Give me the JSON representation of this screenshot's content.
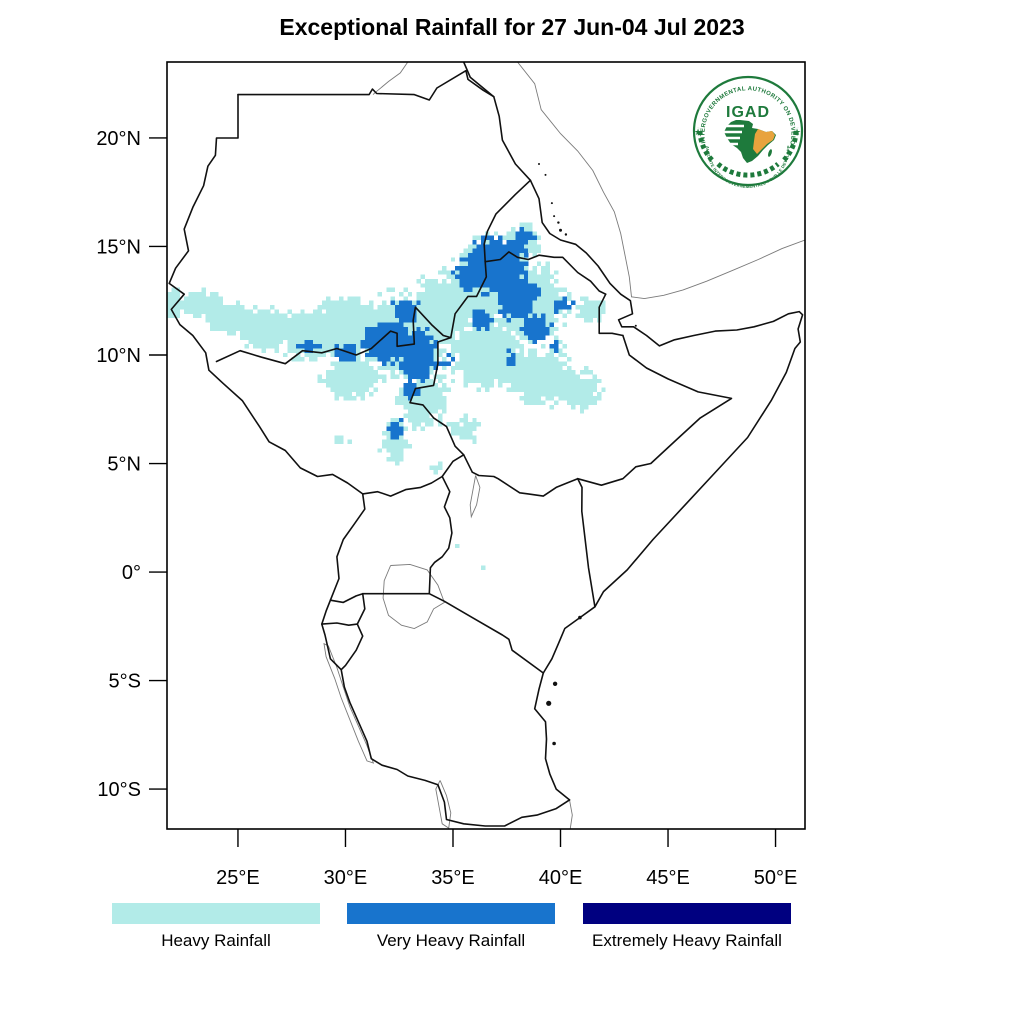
{
  "title": "Exceptional Rainfall for 27 Jun-04 Jul 2023",
  "map": {
    "extent": {
      "lon_min": 21.7,
      "lon_max": 51.37,
      "lat_min": -11.84,
      "lat_max": 23.5
    },
    "x_axis": {
      "ticks": [
        {
          "label": "25°E",
          "lon": 25
        },
        {
          "label": "30°E",
          "lon": 30
        },
        {
          "label": "35°E",
          "lon": 35
        },
        {
          "label": "40°E",
          "lon": 40
        },
        {
          "label": "45°E",
          "lon": 45
        },
        {
          "label": "50°E",
          "lon": 50
        }
      ]
    },
    "y_axis": {
      "ticks": [
        {
          "label": "20°N",
          "lat": 20
        },
        {
          "label": "15°N",
          "lat": 15
        },
        {
          "label": "10°N",
          "lat": 10
        },
        {
          "label": "5°N",
          "lat": 5
        },
        {
          "label": "0°",
          "lat": 0
        },
        {
          "label": "5°S",
          "lat": -5
        },
        {
          "label": "10°S",
          "lat": -10
        }
      ]
    }
  },
  "legend": {
    "items": [
      {
        "label": "Heavy Rainfall",
        "color": "#B2EBE8"
      },
      {
        "label": "Very Heavy Rainfall",
        "color": "#1874CD"
      },
      {
        "label": "Extremely Heavy Rainfall",
        "color": "#000080"
      }
    ]
  },
  "logo": {
    "acronym": "IGAD",
    "top_text": "INTERGOVERNMENTAL AUTHORITY ON DEVELOPMENT",
    "bottom_text": "AUTORITE INTERGOUVERNEMENTALE POUR LE DEVELOPPEMENT",
    "star": "★",
    "green": "#1E7A3C",
    "yellow": "#E8A33D"
  },
  "rainfall": {
    "grid_degrees": 0.2,
    "levels": [
      {
        "name": "heavy",
        "color": "#B2EBE8",
        "blobs": [
          [
            21.9,
            12.4,
            0.9,
            1.0,
            0.75
          ],
          [
            23.2,
            12.4,
            1.2,
            0.9,
            0.8
          ],
          [
            24.6,
            11.7,
            1.6,
            1.0,
            0.8
          ],
          [
            26.4,
            11.2,
            1.9,
            1.2,
            0.85
          ],
          [
            28.3,
            10.9,
            1.9,
            1.4,
            0.9
          ],
          [
            30.1,
            11.4,
            2.1,
            1.6,
            0.95
          ],
          [
            32.6,
            10.9,
            2.4,
            2.2,
            1.0
          ],
          [
            34.6,
            12.1,
            2.0,
            1.9,
            0.95
          ],
          [
            36.6,
            13.4,
            2.2,
            2.2,
            1.0
          ],
          [
            38.6,
            12.4,
            2.0,
            2.2,
            0.95
          ],
          [
            36.6,
            10.0,
            2.2,
            1.8,
            0.95
          ],
          [
            38.9,
            9.0,
            2.0,
            1.6,
            0.9
          ],
          [
            40.9,
            8.3,
            1.4,
            1.3,
            0.8
          ],
          [
            33.6,
            8.0,
            1.5,
            1.7,
            0.85
          ],
          [
            32.3,
            5.9,
            0.9,
            1.1,
            0.75
          ],
          [
            30.3,
            8.9,
            1.7,
            1.3,
            0.85
          ],
          [
            41.4,
            12.1,
            0.9,
            0.9,
            0.7
          ],
          [
            35.6,
            6.6,
            1.1,
            0.9,
            0.7
          ],
          [
            34.3,
            4.8,
            0.5,
            0.45,
            0.6
          ],
          [
            29.8,
            6.1,
            0.55,
            0.55,
            0.65
          ],
          [
            35.3,
            1.2,
            0.28,
            0.28,
            0.6
          ],
          [
            36.3,
            0.2,
            0.18,
            0.18,
            0.58
          ],
          [
            38.3,
            15.3,
            1.0,
            1.1,
            0.8
          ]
        ]
      },
      {
        "name": "very_heavy",
        "color": "#1874CD",
        "blobs": [
          [
            31.9,
            10.6,
            1.5,
            1.2,
            1.05
          ],
          [
            33.4,
            10.0,
            1.1,
            1.6,
            1.0
          ],
          [
            32.8,
            12.0,
            0.9,
            0.8,
            0.9
          ],
          [
            30.1,
            10.2,
            1.0,
            0.7,
            0.85
          ],
          [
            28.3,
            10.4,
            0.8,
            0.5,
            0.75
          ],
          [
            36.9,
            14.1,
            1.9,
            1.6,
            1.05
          ],
          [
            38.0,
            12.7,
            1.3,
            1.5,
            0.95
          ],
          [
            38.9,
            11.2,
            1.0,
            1.1,
            0.85
          ],
          [
            36.3,
            11.6,
            0.8,
            0.8,
            0.75
          ],
          [
            40.1,
            12.3,
            0.8,
            0.8,
            0.7
          ],
          [
            32.4,
            6.6,
            0.6,
            1.0,
            0.8
          ],
          [
            33.1,
            8.4,
            0.6,
            0.8,
            0.7
          ],
          [
            37.6,
            9.9,
            0.9,
            0.7,
            0.65
          ],
          [
            39.8,
            10.4,
            0.7,
            0.7,
            0.6
          ],
          [
            34.8,
            9.7,
            0.7,
            0.6,
            0.65
          ],
          [
            35.7,
            13.7,
            0.9,
            0.9,
            0.85
          ],
          [
            38.2,
            15.3,
            0.8,
            0.9,
            0.8
          ]
        ]
      },
      {
        "name": "extremely_heavy",
        "color": "#000080",
        "blobs": []
      }
    ]
  }
}
